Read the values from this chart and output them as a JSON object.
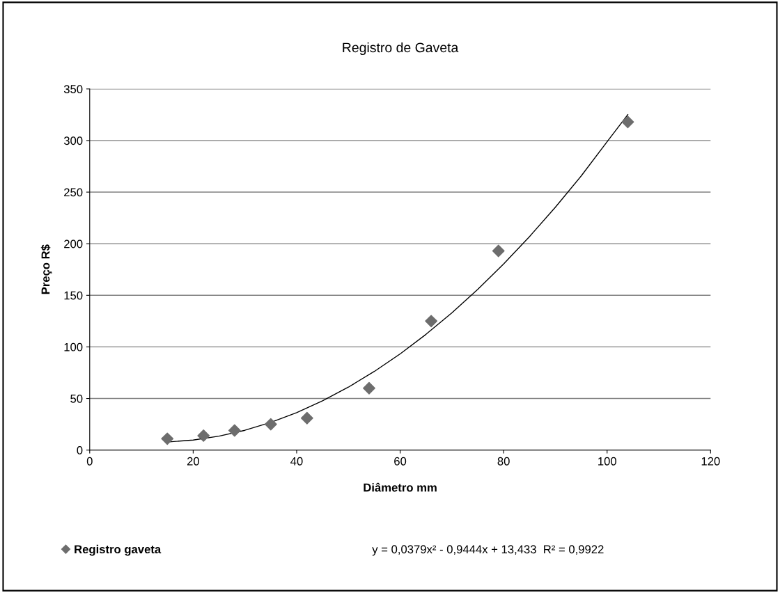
{
  "chart_data": {
    "type": "scatter",
    "title": "Registro de Gaveta",
    "xlabel": "Diâmetro mm",
    "ylabel": "Preço R$",
    "xlim": [
      0,
      120
    ],
    "xticks": [
      0,
      20,
      40,
      60,
      80,
      100,
      120
    ],
    "ylim": [
      0,
      350
    ],
    "yticks": [
      0,
      50,
      100,
      150,
      200,
      250,
      300,
      350
    ],
    "grid": "y",
    "legend": "bottom",
    "marker": "diamond",
    "series": [
      {
        "name": "Registro gaveta",
        "color": "#6d6d6d",
        "x": [
          15,
          22,
          28,
          35,
          42,
          54,
          66,
          79,
          104
        ],
        "values": [
          11,
          14,
          19,
          25,
          31,
          60,
          125,
          193,
          318
        ]
      },
      {
        "type": "line",
        "color": "#000000",
        "line_style": "solid",
        "marker": "none",
        "x": [
          15,
          20,
          25,
          30,
          35,
          40,
          45,
          50,
          55,
          60,
          65,
          70,
          75,
          80,
          85,
          90,
          95,
          100,
          104
        ],
        "values": [
          7.8,
          9.7,
          13.5,
          19.2,
          26.8,
          36.3,
          47.7,
          61.0,
          76.2,
          93.2,
          112.2,
          133.0,
          155.7,
          180.4,
          206.9,
          235.4,
          265.7,
          298.9,
          325.1
        ]
      }
    ],
    "annotations": [
      "y = 0,0379x² - 0,9444x + 13,433  R² = 0,9922"
    ]
  }
}
